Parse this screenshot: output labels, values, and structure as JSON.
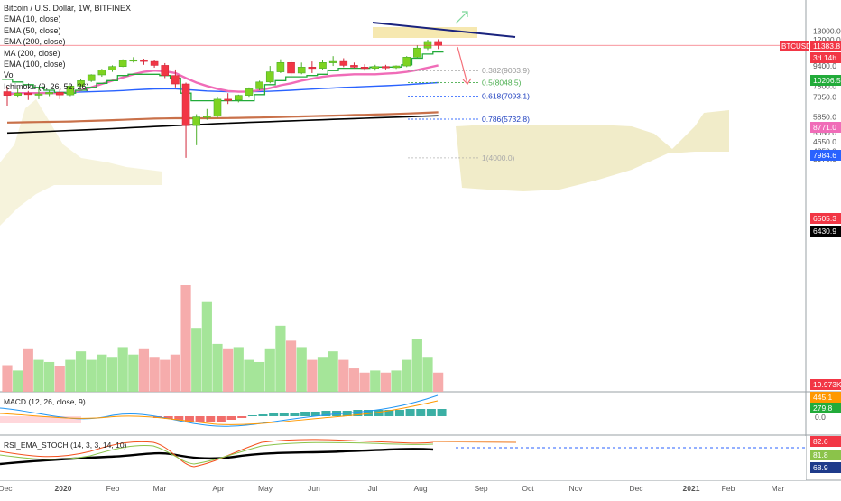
{
  "chart_data": {
    "type": "candlestick",
    "symbol": "BTCUSD",
    "title": "Bitcoin / U.S. Dollar, 1W, BITFINEX",
    "indicators_legend": [
      "EMA (10, close)",
      "EMA (50, close)",
      "EMA (200, close)",
      "MA (200, close)",
      "EMA (100, close)",
      "Vol",
      "Ichimoku (9, 26, 52, 26)"
    ],
    "price_axis_ticks": [
      13000,
      12000,
      9400,
      7800,
      7050,
      5850,
      5450,
      5050,
      4650,
      4250,
      3970
    ],
    "price_axis_tick_labels": [
      "13000.0",
      "12000.0",
      "9400.0",
      "7800.0",
      "7050.0",
      "5850.0",
      "5450.0",
      "5050.0",
      "4650.0",
      "4250.0",
      "3970.0"
    ],
    "time_axis_labels": [
      "Dec",
      "2020",
      "Feb",
      "Mar",
      "Apr",
      "May",
      "Jun",
      "Jul",
      "Aug",
      "Sep",
      "Oct",
      "Nov",
      "Dec",
      "2021",
      "Feb",
      "Mar"
    ],
    "candles": [
      {
        "o": 7400,
        "h": 7750,
        "l": 6500,
        "c": 7150
      },
      {
        "o": 7150,
        "h": 7600,
        "l": 7000,
        "c": 7300
      },
      {
        "o": 7300,
        "h": 7450,
        "l": 6850,
        "c": 7200
      },
      {
        "o": 7200,
        "h": 7650,
        "l": 6900,
        "c": 7250
      },
      {
        "o": 7250,
        "h": 7500,
        "l": 7100,
        "c": 7350
      },
      {
        "o": 7350,
        "h": 7550,
        "l": 6900,
        "c": 7180
      },
      {
        "o": 7180,
        "h": 7850,
        "l": 7100,
        "c": 7800
      },
      {
        "o": 7800,
        "h": 8300,
        "l": 7700,
        "c": 8200
      },
      {
        "o": 8200,
        "h": 8700,
        "l": 8100,
        "c": 8650
      },
      {
        "o": 8650,
        "h": 9150,
        "l": 8500,
        "c": 9050
      },
      {
        "o": 9050,
        "h": 9450,
        "l": 8900,
        "c": 9350
      },
      {
        "o": 9350,
        "h": 10000,
        "l": 9300,
        "c": 9900
      },
      {
        "o": 9900,
        "h": 10200,
        "l": 9700,
        "c": 9950
      },
      {
        "o": 9950,
        "h": 10050,
        "l": 9500,
        "c": 9800
      },
      {
        "o": 9800,
        "h": 9900,
        "l": 9250,
        "c": 9450
      },
      {
        "o": 9450,
        "h": 9650,
        "l": 8400,
        "c": 8600
      },
      {
        "o": 8600,
        "h": 9100,
        "l": 7700,
        "c": 7950
      },
      {
        "o": 7950,
        "h": 8050,
        "l": 4000,
        "c": 5400
      },
      {
        "o": 5400,
        "h": 6000,
        "l": 4500,
        "c": 5850
      },
      {
        "o": 5850,
        "h": 6300,
        "l": 5700,
        "c": 5900
      },
      {
        "o": 5900,
        "h": 7000,
        "l": 5800,
        "c": 6900
      },
      {
        "o": 6900,
        "h": 7300,
        "l": 6600,
        "c": 6850
      },
      {
        "o": 6850,
        "h": 7200,
        "l": 6700,
        "c": 7150
      },
      {
        "o": 7150,
        "h": 7700,
        "l": 7000,
        "c": 7600
      },
      {
        "o": 7600,
        "h": 8200,
        "l": 7500,
        "c": 8100
      },
      {
        "o": 8100,
        "h": 9400,
        "l": 8000,
        "c": 8900
      },
      {
        "o": 8900,
        "h": 10000,
        "l": 8800,
        "c": 9700
      },
      {
        "o": 9700,
        "h": 9900,
        "l": 8600,
        "c": 8800
      },
      {
        "o": 8800,
        "h": 9700,
        "l": 8700,
        "c": 9300
      },
      {
        "o": 9300,
        "h": 9800,
        "l": 8800,
        "c": 9200
      },
      {
        "o": 9200,
        "h": 9900,
        "l": 9100,
        "c": 9700
      },
      {
        "o": 9700,
        "h": 10300,
        "l": 9400,
        "c": 9800
      },
      {
        "o": 9800,
        "h": 10100,
        "l": 9300,
        "c": 9450
      },
      {
        "o": 9450,
        "h": 9700,
        "l": 9200,
        "c": 9300
      },
      {
        "o": 9300,
        "h": 9550,
        "l": 9000,
        "c": 9200
      },
      {
        "o": 9200,
        "h": 9500,
        "l": 9000,
        "c": 9350
      },
      {
        "o": 9350,
        "h": 9500,
        "l": 9100,
        "c": 9250
      },
      {
        "o": 9250,
        "h": 9450,
        "l": 9150,
        "c": 9400
      },
      {
        "o": 9400,
        "h": 10300,
        "l": 9300,
        "c": 10200
      },
      {
        "o": 10200,
        "h": 11400,
        "l": 10100,
        "c": 11100
      },
      {
        "o": 11100,
        "h": 12000,
        "l": 10900,
        "c": 11800
      },
      {
        "o": 11800,
        "h": 12050,
        "l": 11000,
        "c": 11380
      }
    ],
    "volume_heights": [
      0.25,
      0.2,
      0.4,
      0.3,
      0.28,
      0.24,
      0.3,
      0.38,
      0.3,
      0.35,
      0.32,
      0.42,
      0.35,
      0.4,
      0.32,
      0.3,
      0.35,
      1.0,
      0.6,
      0.85,
      0.45,
      0.4,
      0.42,
      0.3,
      0.28,
      0.4,
      0.62,
      0.48,
      0.42,
      0.3,
      0.32,
      0.38,
      0.3,
      0.22,
      0.18,
      0.2,
      0.18,
      0.2,
      0.3,
      0.5,
      0.32,
      0.18
    ],
    "overlays": {
      "ema10": [
        7200,
        7300,
        7300,
        7300,
        7300,
        7300,
        7350,
        7500,
        7700,
        7950,
        8200,
        8450,
        8700,
        8900,
        9000,
        8950,
        8800,
        8400,
        8050,
        7800,
        7600,
        7450,
        7400,
        7400,
        7500,
        7650,
        7850,
        8000,
        8200,
        8350,
        8500,
        8600,
        8650,
        8700,
        8700,
        8700,
        8750,
        8800,
        8900,
        9050,
        9250,
        9450
      ],
      "ema50": [
        7300,
        7300,
        7320,
        7330,
        7340,
        7350,
        7360,
        7380,
        7400,
        7420,
        7450,
        7480,
        7520,
        7560,
        7590,
        7600,
        7600,
        7550,
        7500,
        7450,
        7420,
        7400,
        7400,
        7400,
        7410,
        7430,
        7460,
        7500,
        7540,
        7580,
        7620,
        7660,
        7700,
        7730,
        7760,
        7790,
        7820,
        7860,
        7900,
        7950,
        8000,
        8050
      ],
      "ema100": [
        5550,
        5560,
        5570,
        5580,
        5590,
        5600,
        5610,
        5625,
        5640,
        5660,
        5680,
        5700,
        5720,
        5740,
        5760,
        5770,
        5780,
        5780,
        5780,
        5780,
        5785,
        5790,
        5800,
        5810,
        5820,
        5835,
        5850,
        5865,
        5880,
        5895,
        5910,
        5925,
        5940,
        5955,
        5970,
        5985,
        6000,
        6020,
        6040,
        6060,
        6085,
        6110
      ],
      "ma200": [
        5040,
        5060,
        5080,
        5100,
        5120,
        5140,
        5160,
        5180,
        5200,
        5225,
        5250,
        5275,
        5300,
        5325,
        5350,
        5375,
        5400,
        5425,
        5450,
        5475,
        5500,
        5520,
        5540,
        5560,
        5580,
        5600,
        5620,
        5640,
        5660,
        5680,
        5700,
        5720,
        5740,
        5760,
        5780,
        5800,
        5820,
        5840,
        5860,
        5880,
        5900,
        5920
      ],
      "ichimoku_conversion": [
        8300,
        8100,
        7900,
        7700,
        7500,
        7350,
        7300,
        7500,
        7700,
        8000,
        8200,
        8600,
        8700,
        8700,
        8700,
        8600,
        8400,
        7300,
        6800,
        6800,
        6800,
        6800,
        6800,
        6800,
        7200,
        7900,
        8200,
        8500,
        8500,
        8600,
        8700,
        9000,
        9200,
        9200,
        9200,
        9300,
        9300,
        9300,
        9500,
        10100,
        10500,
        10700
      ]
    },
    "fibonacci": [
      {
        "ratio_label": "0.382(9003.9)",
        "price": 9003.9
      },
      {
        "ratio_label": "0.5(8048.5)",
        "price": 8048.5
      },
      {
        "ratio_label": "0.618(7093.1)",
        "price": 7093.1
      },
      {
        "ratio_label": "0.786(5732.8)",
        "price": 5732.8
      },
      {
        "ratio_label": "1(4000.0)",
        "price": 4000.0
      }
    ],
    "price_badges": [
      {
        "label": "BTCUSD",
        "value": "11383.8",
        "color": "#f23645"
      },
      {
        "label": "",
        "value": "3d 14h",
        "color": "#f23645"
      },
      {
        "label": "",
        "value": "10206.5",
        "color": "#22ab3a"
      },
      {
        "label": "",
        "value": "8771.0",
        "color": "#f06cb8"
      },
      {
        "label": "",
        "value": "7984.6",
        "color": "#2962ff"
      },
      {
        "label": "",
        "value": "6505.3",
        "color": "#f23645"
      },
      {
        "label": "",
        "value": "6430.9",
        "color": "#000000"
      },
      {
        "label": "",
        "value": "19.973K",
        "color": "#f23645"
      }
    ],
    "macd": {
      "label": "MACD (12, 26, close, 9)",
      "badges": [
        "445.1",
        "279.8"
      ],
      "axis_ticks": [
        "0.0"
      ]
    },
    "rsi_stoch": {
      "label": "RSI_EMA_STOCH (14, 3, 3, 14, 10)",
      "badges": [
        "82.6",
        "81.8",
        "68.9"
      ]
    }
  },
  "colors": {
    "up": "#7ed321",
    "down": "#f23645",
    "cloud": "#eee9c0",
    "ema10_color": "#22ab3a",
    "ema50_color": "#f06cb8",
    "ema100_color": "#2962ff",
    "ma200_color": "#000000",
    "ema200_color": "#c9714a"
  }
}
